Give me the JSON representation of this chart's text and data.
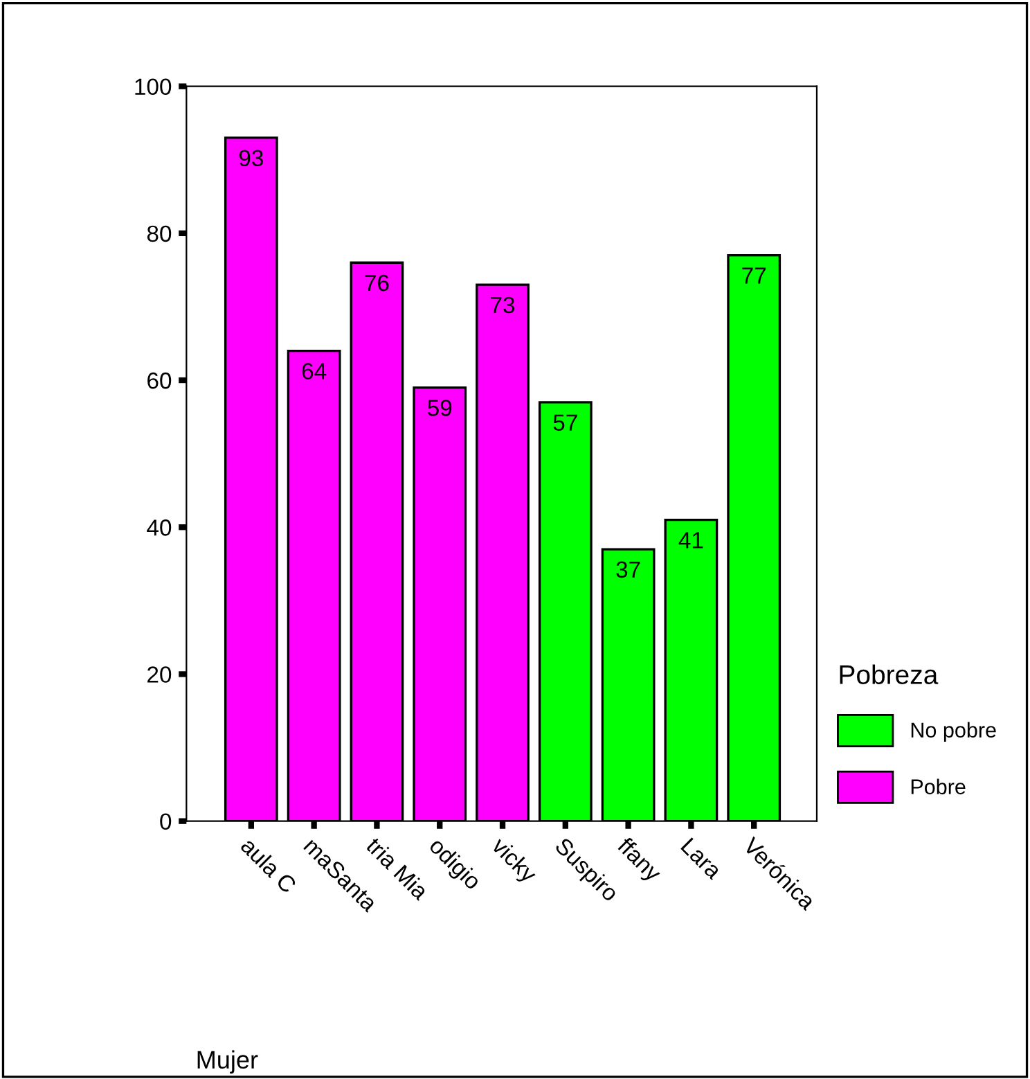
{
  "chart_data": {
    "type": "bar",
    "annotations": [
      "Mujer"
    ],
    "legend_title": "Pobreza",
    "categories": [
      "aula C",
      "maSanta",
      "tria Mia",
      "odigio",
      "vicky",
      "Suspiro",
      "ffany",
      "Lara",
      "Verónica"
    ],
    "series": [
      {
        "name": "No pobre",
        "color": "#00ff00",
        "values": [
          null,
          null,
          null,
          null,
          null,
          57,
          37,
          41,
          77
        ]
      },
      {
        "name": "Pobre",
        "color": "#ff00ff",
        "values": [
          93,
          64,
          76,
          59,
          73,
          null,
          null,
          null,
          null
        ]
      }
    ],
    "ylim": [
      0,
      100
    ],
    "yticks": [
      0,
      20,
      40,
      60,
      80,
      100
    ],
    "data_labels": true,
    "grid": false,
    "legend": "right"
  }
}
